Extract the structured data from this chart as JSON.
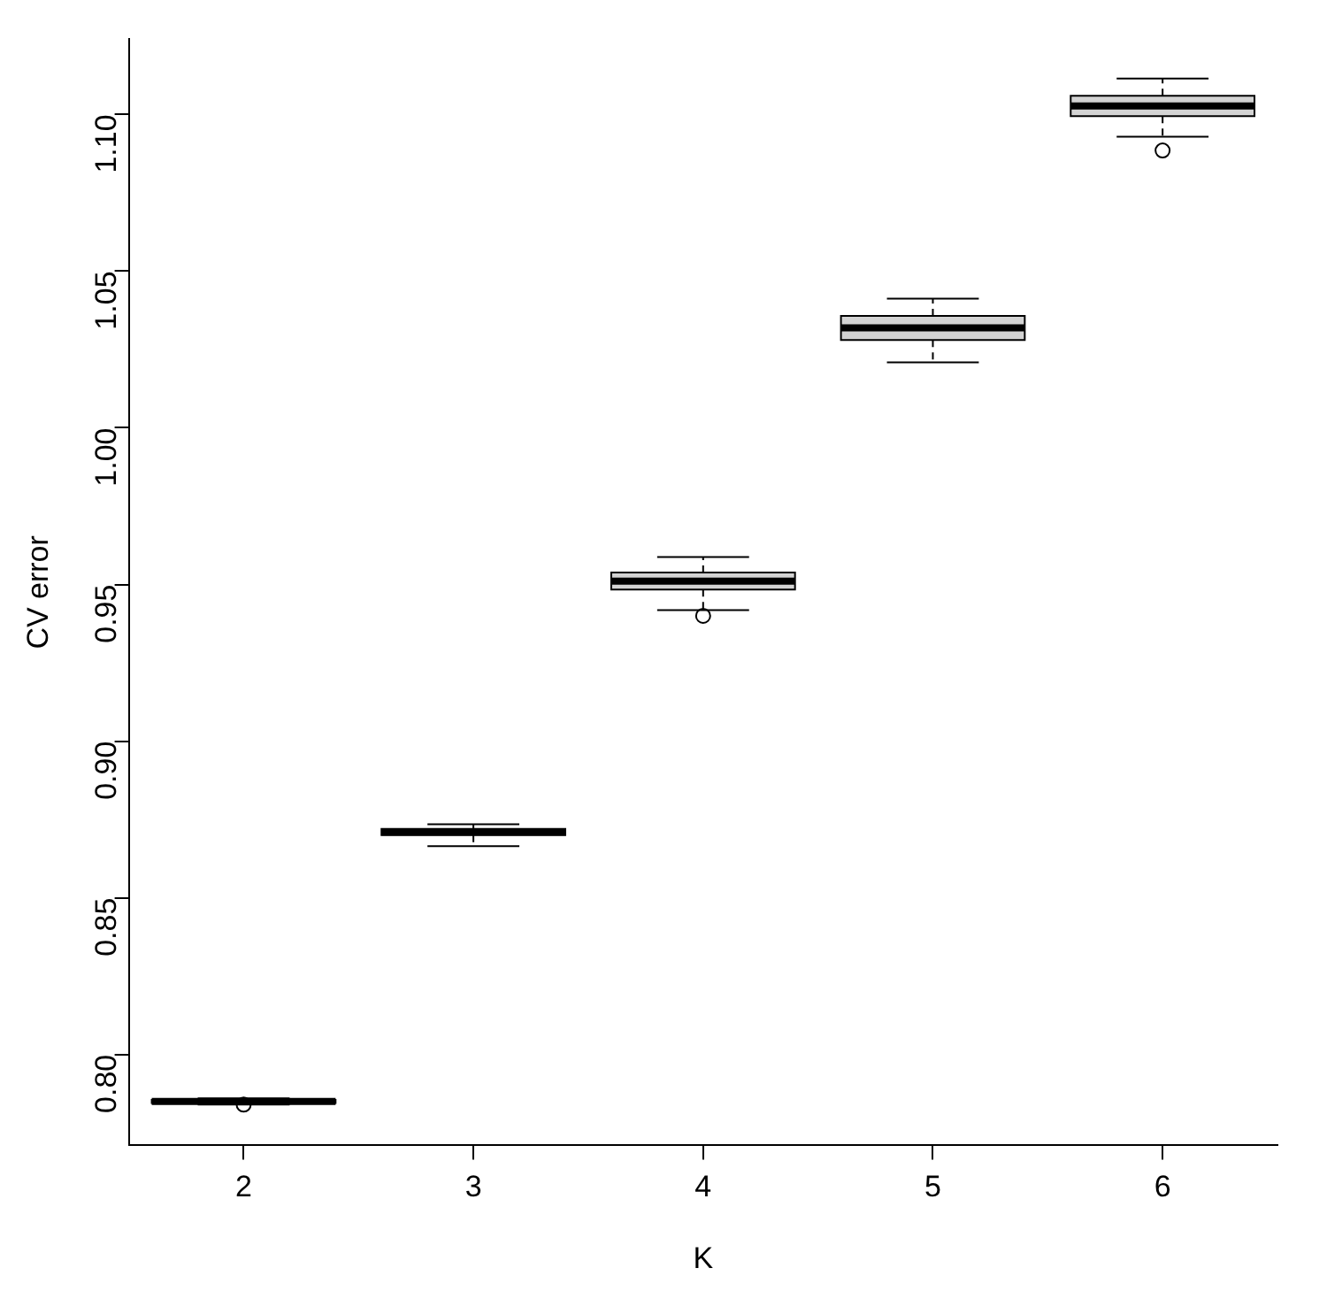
{
  "chart_data": {
    "type": "box",
    "xlabel": "K",
    "ylabel": "CV error",
    "categories": [
      "2",
      "3",
      "4",
      "5",
      "6"
    ],
    "boxes": [
      {
        "low": 0.784,
        "q1": 0.7845,
        "median": 0.785,
        "q3": 0.7855,
        "high": 0.786,
        "outliers": [
          0.784
        ]
      },
      {
        "low": 0.8665,
        "q1": 0.87,
        "median": 0.871,
        "q3": 0.872,
        "high": 0.8735
      },
      {
        "low": 0.9418,
        "q1": 0.9484,
        "median": 0.9511,
        "q3": 0.9538,
        "high": 0.9588,
        "outliers": [
          0.94
        ]
      },
      {
        "low": 1.0209,
        "q1": 1.028,
        "median": 1.0319,
        "q3": 1.0357,
        "high": 1.0412
      },
      {
        "low": 1.0929,
        "q1": 1.0995,
        "median": 1.1027,
        "q3": 1.106,
        "high": 1.1115,
        "outliers": [
          1.0885
        ]
      }
    ],
    "color": "#d3d3d3",
    "ylim": [
      0.771,
      1.124
    ],
    "yticks": [
      {
        "value": 0.8,
        "label": "0.80"
      },
      {
        "value": 0.85,
        "label": "0.85"
      },
      {
        "value": 0.9,
        "label": "0.90"
      },
      {
        "value": 0.95,
        "label": "0.95"
      },
      {
        "value": 1.0,
        "label": "1.00"
      },
      {
        "value": 1.05,
        "label": "1.05"
      },
      {
        "value": 1.1,
        "label": "1.10"
      }
    ],
    "grid": false,
    "legend": false
  }
}
